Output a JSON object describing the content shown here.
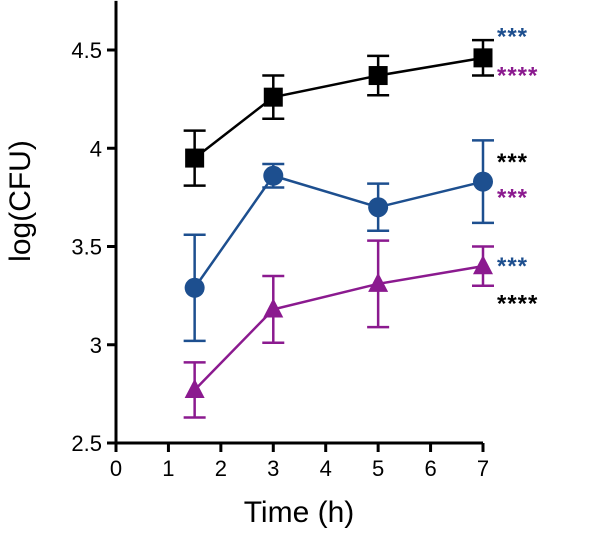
{
  "chart_data": {
    "type": "line",
    "title": "",
    "xlabel": "Time (h)",
    "ylabel": "log(CFU)",
    "xlim": [
      0,
      7
    ],
    "ylim": [
      2.5,
      4.75
    ],
    "x_ticks": [
      0,
      1,
      2,
      3,
      4,
      5,
      6,
      7
    ],
    "x_tick_labels": [
      "0",
      "1",
      "2",
      "3",
      "4",
      "5",
      "6",
      "7"
    ],
    "y_ticks": [
      2.5,
      3,
      3.5,
      4,
      4.5
    ],
    "y_tick_labels": [
      "2.5",
      "3",
      "3.5",
      "4",
      "4.5"
    ],
    "grid": false,
    "legend": "none",
    "series": [
      {
        "color": "#000000",
        "marker": "square",
        "x": [
          1.5,
          3,
          5,
          7
        ],
        "values": [
          3.95,
          4.26,
          4.37,
          4.46
        ],
        "errors": [
          0.14,
          0.11,
          0.1,
          0.09
        ]
      },
      {
        "color": "#1d4f8f",
        "marker": "circle",
        "x": [
          1.5,
          3,
          5,
          7
        ],
        "values": [
          3.29,
          3.86,
          3.7,
          3.83
        ],
        "errors": [
          0.27,
          0.06,
          0.12,
          0.21
        ]
      },
      {
        "color": "#8b1a8f",
        "marker": "triangle",
        "x": [
          1.5,
          3,
          5,
          7
        ],
        "values": [
          2.77,
          3.18,
          3.31,
          3.4
        ],
        "errors": [
          0.14,
          0.17,
          0.22,
          0.1
        ]
      }
    ],
    "annotations": [
      {
        "text": "***",
        "color": "#1d4f8f",
        "y": 4.58
      },
      {
        "text": "****",
        "color": "#8b1a8f",
        "y": 4.38
      },
      {
        "text": "***",
        "color": "#000000",
        "y": 3.94
      },
      {
        "text": "***",
        "color": "#8b1a8f",
        "y": 3.76
      },
      {
        "text": "***",
        "color": "#1d4f8f",
        "y": 3.41
      },
      {
        "text": "****",
        "color": "#000000",
        "y": 3.22
      }
    ]
  }
}
